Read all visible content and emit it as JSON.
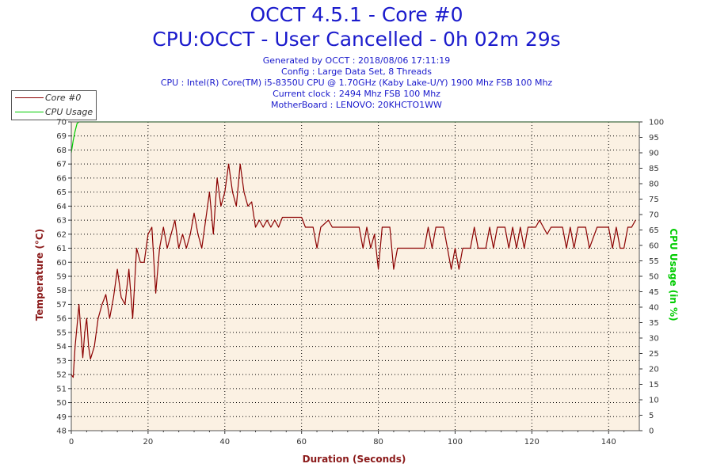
{
  "header": {
    "title": "OCCT 4.5.1 - Core #0",
    "subtitle": "CPU:OCCT - User Cancelled - 0h 02m 29s",
    "info_lines": [
      "Generated by OCCT : 2018/08/06 17:11:19",
      "Config : Large Data Set, 8 Threads",
      "CPU : Intel(R) Core(TM) i5-8350U CPU @ 1.70GHz (Kaby Lake-U/Y) 1900 Mhz FSB 100 Mhz",
      "Current clock : 2494 Mhz FSB 100 Mhz",
      "MotherBoard : LENOVO: 20KHCTO1WW"
    ]
  },
  "colors": {
    "background": "#fbf1e3",
    "temperature": "#8b0000",
    "cpu_usage": "#00cc00",
    "title": "#1a1acc",
    "axis_label_left": "#8b1a1a",
    "axis_label_right": "#00cc00"
  },
  "chart_data": {
    "type": "line",
    "xlabel": "Duration (Seconds)",
    "ylabel": "Temperature (°C)",
    "y2label": "CPU Usage (in %)",
    "xlim": [
      0,
      148
    ],
    "ylim": [
      48,
      70
    ],
    "y2lim": [
      0,
      100
    ],
    "xticks": [
      0,
      20,
      40,
      60,
      80,
      100,
      120,
      140
    ],
    "yticks": [
      48,
      49,
      50,
      51,
      52,
      53,
      54,
      55,
      56,
      57,
      58,
      59,
      60,
      61,
      62,
      63,
      64,
      65,
      66,
      67,
      68,
      69,
      70
    ],
    "y2ticks": [
      0,
      5,
      10,
      15,
      20,
      25,
      30,
      35,
      40,
      45,
      50,
      55,
      60,
      65,
      70,
      75,
      80,
      85,
      90,
      95,
      100
    ],
    "legend": [
      "Core #0",
      "CPU Usage"
    ],
    "series": [
      {
        "name": "Core #0",
        "axis": "left",
        "points": [
          [
            0,
            52
          ],
          [
            0.5,
            51.8
          ],
          [
            1,
            54
          ],
          [
            1.5,
            55.5
          ],
          [
            2,
            57
          ],
          [
            2.5,
            55
          ],
          [
            3,
            53.2
          ],
          [
            3.5,
            55
          ],
          [
            4,
            56
          ],
          [
            4.5,
            54
          ],
          [
            5,
            53.1
          ],
          [
            6,
            54
          ],
          [
            7,
            56
          ],
          [
            8,
            57
          ],
          [
            9,
            57.7
          ],
          [
            10,
            56
          ],
          [
            11,
            57.5
          ],
          [
            12,
            59.5
          ],
          [
            13,
            57.5
          ],
          [
            14,
            57
          ],
          [
            15,
            59.5
          ],
          [
            16,
            56
          ],
          [
            17,
            61
          ],
          [
            18,
            60
          ],
          [
            19,
            60
          ],
          [
            20,
            62
          ],
          [
            21,
            62.5
          ],
          [
            22,
            57.8
          ],
          [
            23,
            61
          ],
          [
            24,
            62.5
          ],
          [
            25,
            61
          ],
          [
            26,
            62
          ],
          [
            27,
            63
          ],
          [
            28,
            61
          ],
          [
            29,
            62
          ],
          [
            30,
            61
          ],
          [
            31,
            62
          ],
          [
            32,
            63.5
          ],
          [
            33,
            62
          ],
          [
            34,
            61
          ],
          [
            35,
            63
          ],
          [
            36,
            65
          ],
          [
            37,
            62
          ],
          [
            38,
            66
          ],
          [
            39,
            64
          ],
          [
            40,
            65
          ],
          [
            41,
            67
          ],
          [
            42,
            65
          ],
          [
            43,
            64
          ],
          [
            44,
            67
          ],
          [
            45,
            65
          ],
          [
            46,
            64
          ],
          [
            47,
            64.3
          ],
          [
            48,
            62.5
          ],
          [
            49,
            63
          ],
          [
            50,
            62.5
          ],
          [
            51,
            63
          ],
          [
            52,
            62.5
          ],
          [
            53,
            63
          ],
          [
            54,
            62.5
          ],
          [
            55,
            63.2
          ],
          [
            60,
            63.2
          ],
          [
            61,
            62.5
          ],
          [
            63,
            62.5
          ],
          [
            64,
            61
          ],
          [
            65,
            62.5
          ],
          [
            67,
            63
          ],
          [
            68,
            62.5
          ],
          [
            75,
            62.5
          ],
          [
            76,
            61
          ],
          [
            77,
            62.5
          ],
          [
            78,
            61
          ],
          [
            79,
            62
          ],
          [
            80,
            59.5
          ],
          [
            81,
            62.5
          ],
          [
            83,
            62.5
          ],
          [
            84,
            59.5
          ],
          [
            85,
            61
          ],
          [
            92,
            61
          ],
          [
            93,
            62.5
          ],
          [
            94,
            61
          ],
          [
            95,
            62.5
          ],
          [
            97,
            62.5
          ],
          [
            98,
            61
          ],
          [
            99,
            59.5
          ],
          [
            100,
            61
          ],
          [
            101,
            59.5
          ],
          [
            102,
            61
          ],
          [
            104,
            61
          ],
          [
            105,
            62.5
          ],
          [
            106,
            61
          ],
          [
            108,
            61
          ],
          [
            109,
            62.5
          ],
          [
            110,
            61
          ],
          [
            111,
            62.5
          ],
          [
            113,
            62.5
          ],
          [
            114,
            61
          ],
          [
            115,
            62.5
          ],
          [
            116,
            61
          ],
          [
            117,
            62.5
          ],
          [
            118,
            61
          ],
          [
            119,
            62.5
          ],
          [
            120,
            62.5
          ],
          [
            121,
            62.5
          ],
          [
            122,
            63
          ],
          [
            123,
            62.5
          ],
          [
            124,
            62
          ],
          [
            125,
            62.5
          ],
          [
            128,
            62.5
          ],
          [
            129,
            61
          ],
          [
            130,
            62.5
          ],
          [
            131,
            61
          ],
          [
            132,
            62.5
          ],
          [
            134,
            62.5
          ],
          [
            135,
            61
          ],
          [
            137,
            62.5
          ],
          [
            140,
            62.5
          ],
          [
            141,
            61
          ],
          [
            142,
            62.5
          ],
          [
            143,
            61
          ],
          [
            144,
            61
          ],
          [
            145,
            62.5
          ],
          [
            146,
            62.5
          ],
          [
            147,
            63
          ]
        ]
      },
      {
        "name": "CPU Usage",
        "axis": "right",
        "points": [
          [
            0,
            90
          ],
          [
            0.5,
            94
          ],
          [
            1,
            97
          ],
          [
            1.5,
            99.5
          ],
          [
            2,
            100
          ],
          [
            148,
            100
          ]
        ]
      }
    ]
  }
}
